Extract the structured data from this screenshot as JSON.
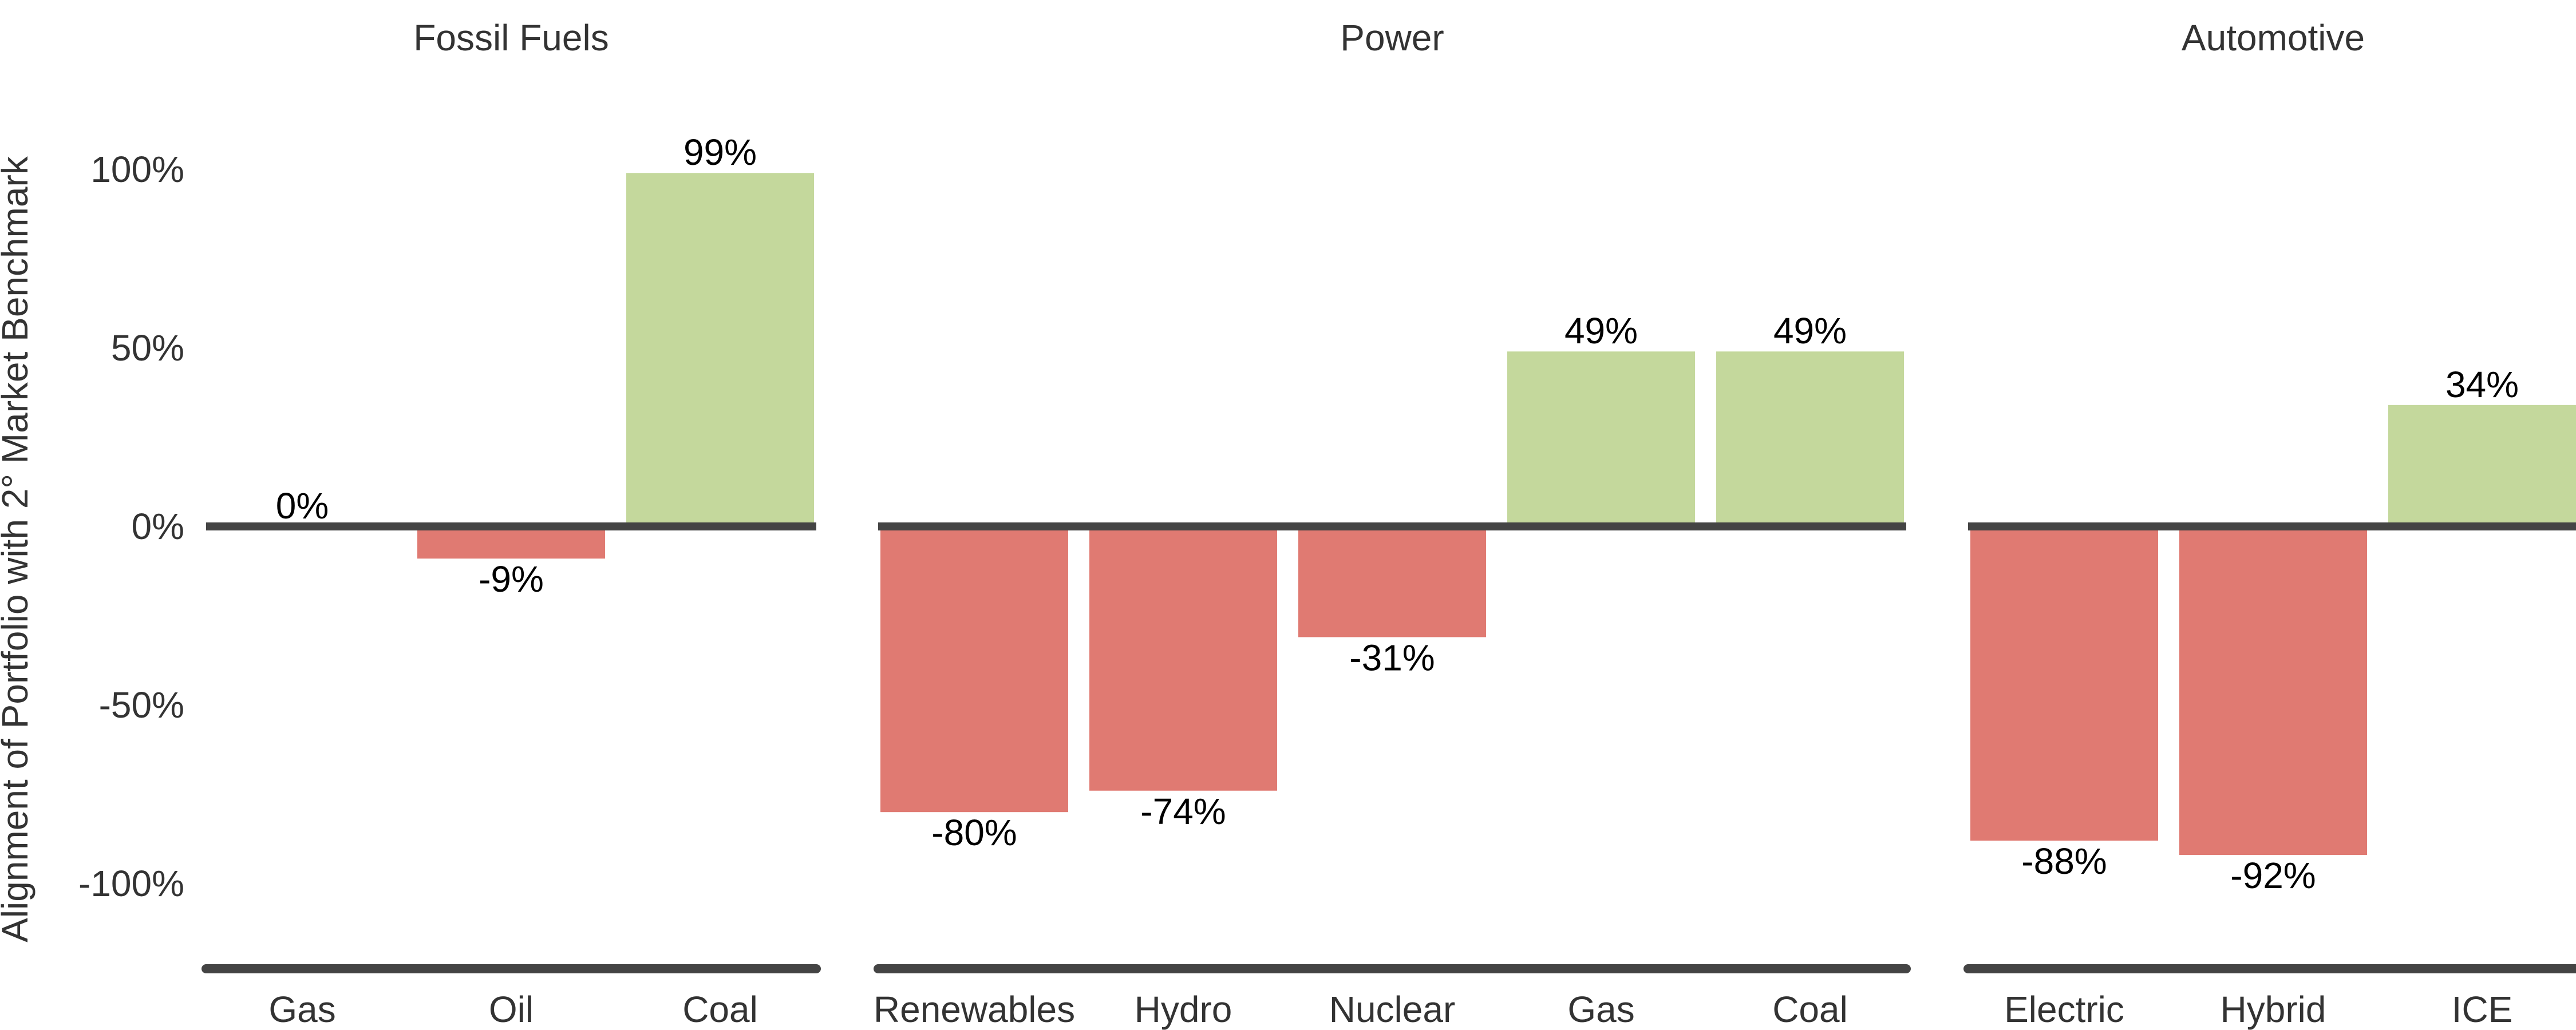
{
  "chart_data": {
    "type": "bar",
    "ylabel": "Alignment of Portfolio with 2° Market Benchmark",
    "ylim": [
      -1.25,
      1.1
    ],
    "yticks": [
      {
        "value": 1.0,
        "label": "100%"
      },
      {
        "value": 0.5,
        "label": "50%"
      },
      {
        "value": 0.0,
        "label": "0%"
      },
      {
        "value": -0.5,
        "label": "-50%"
      },
      {
        "value": -1.0,
        "label": "-100%"
      }
    ],
    "grid": false,
    "colors": {
      "positive": "#c4d89c",
      "negative": "#e07a72",
      "baseline": "#444444"
    },
    "facets": [
      {
        "title": "Fossil Fuels",
        "categories": [
          "Gas",
          "Oil",
          "Coal"
        ],
        "values": [
          0.0,
          -0.09,
          0.99
        ],
        "labels": [
          "0%",
          "-9%",
          "99%"
        ]
      },
      {
        "title": "Power",
        "categories": [
          "Renewables",
          "Hydro",
          "Nuclear",
          "Gas",
          "Coal"
        ],
        "values": [
          -0.8,
          -0.74,
          -0.31,
          0.49,
          0.49
        ],
        "labels": [
          "-80%",
          "-74%",
          "-31%",
          "49%",
          "49%"
        ]
      },
      {
        "title": "Automotive",
        "categories": [
          "Electric",
          "Hybrid",
          "ICE"
        ],
        "values": [
          -0.88,
          -0.92,
          0.34
        ],
        "labels": [
          "-88%",
          "-92%",
          "34%"
        ]
      }
    ]
  }
}
